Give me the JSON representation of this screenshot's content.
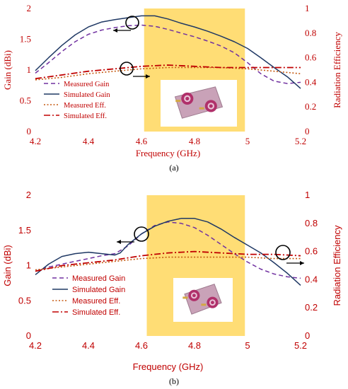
{
  "chart_data": [
    {
      "type": "line",
      "subfigure_label": "(a)",
      "xlabel": "Frequency (GHz)",
      "ylabel": "Gain (dBi)",
      "y2label": "Radiation Efficiency",
      "xlim": [
        4.2,
        5.2
      ],
      "ylim": [
        0,
        2
      ],
      "y2lim": [
        0,
        1
      ],
      "x_ticks": [
        "4.2",
        "4.4",
        "4.6",
        "4.8",
        "5",
        "5.2"
      ],
      "y_ticks": [
        "0",
        "0.5",
        "1",
        "1.5",
        "2"
      ],
      "y2_ticks": [
        "0",
        "0.2",
        "0.4",
        "0.6",
        "0.8",
        "1"
      ],
      "highlight_band": [
        4.61,
        4.99
      ],
      "legend": [
        "Measured Gain",
        "Simulated Gain",
        "Measured Eff.",
        "Simulated Eff."
      ],
      "series": [
        {
          "name": "Measured Gain",
          "axis": "left",
          "color": "#7030a0",
          "x": [
            4.2,
            4.25,
            4.3,
            4.35,
            4.4,
            4.45,
            4.5,
            4.55,
            4.6,
            4.65,
            4.7,
            4.75,
            4.8,
            4.85,
            4.9,
            4.95,
            5.0,
            5.05,
            5.1,
            5.15,
            5.2
          ],
          "y": [
            0.95,
            1.12,
            1.3,
            1.46,
            1.58,
            1.65,
            1.69,
            1.72,
            1.73,
            1.71,
            1.66,
            1.6,
            1.54,
            1.47,
            1.39,
            1.28,
            1.12,
            0.94,
            0.82,
            0.78,
            0.8
          ]
        },
        {
          "name": "Simulated Gain",
          "axis": "left",
          "color": "#1f3864",
          "x": [
            4.2,
            4.25,
            4.3,
            4.35,
            4.4,
            4.45,
            4.5,
            4.55,
            4.6,
            4.65,
            4.7,
            4.75,
            4.8,
            4.85,
            4.9,
            4.95,
            5.0,
            5.05,
            5.1,
            5.15,
            5.2
          ],
          "y": [
            0.99,
            1.2,
            1.4,
            1.57,
            1.7,
            1.78,
            1.82,
            1.85,
            1.88,
            1.88,
            1.83,
            1.76,
            1.7,
            1.63,
            1.55,
            1.46,
            1.35,
            1.2,
            1.04,
            0.89,
            0.7
          ]
        },
        {
          "name": "Measured Eff.",
          "axis": "right",
          "color": "#c55a11",
          "x": [
            4.2,
            4.3,
            4.4,
            4.5,
            4.6,
            4.7,
            4.8,
            4.9,
            5.0,
            5.1,
            5.2
          ],
          "y": [
            0.42,
            0.44,
            0.47,
            0.49,
            0.51,
            0.52,
            0.52,
            0.52,
            0.51,
            0.49,
            0.47
          ]
        },
        {
          "name": "Simulated Eff.",
          "axis": "right",
          "color": "#c00000",
          "x": [
            4.2,
            4.3,
            4.4,
            4.5,
            4.6,
            4.7,
            4.8,
            4.9,
            5.0,
            5.1,
            5.2
          ],
          "y": [
            0.43,
            0.46,
            0.49,
            0.51,
            0.53,
            0.54,
            0.53,
            0.52,
            0.52,
            0.52,
            0.52
          ]
        }
      ]
    },
    {
      "type": "line",
      "subfigure_label": "(b)",
      "xlabel": "Frequency (GHz)",
      "ylabel": "Gain (dBi)",
      "y2label": "Radiation Efficiency",
      "xlim": [
        4.2,
        5.2
      ],
      "ylim": [
        0,
        2
      ],
      "y2lim": [
        0,
        1
      ],
      "x_ticks": [
        "4.2",
        "4.4",
        "4.6",
        "4.8",
        "5",
        "5.2"
      ],
      "y_ticks": [
        "0",
        "0.5",
        "1",
        "1.5",
        "2"
      ],
      "y2_ticks": [
        "0",
        "0.2",
        "0.4",
        "0.6",
        "0.8",
        "1"
      ],
      "highlight_band": [
        4.62,
        4.99
      ],
      "legend": [
        "Measured Gain",
        "Simulated Gain",
        "Measured Eff.",
        "Simulated Eff."
      ],
      "series": [
        {
          "name": "Measured Gain",
          "axis": "left",
          "color": "#7030a0",
          "x": [
            4.2,
            4.25,
            4.3,
            4.35,
            4.4,
            4.45,
            4.5,
            4.55,
            4.6,
            4.65,
            4.7,
            4.75,
            4.8,
            4.85,
            4.9,
            4.95,
            5.0,
            5.05,
            5.1,
            5.15,
            5.2
          ],
          "y": [
            0.92,
            0.98,
            1.02,
            1.06,
            1.1,
            1.14,
            1.17,
            1.28,
            1.45,
            1.57,
            1.62,
            1.6,
            1.54,
            1.43,
            1.3,
            1.17,
            1.05,
            0.95,
            0.88,
            0.84,
            0.82
          ]
        },
        {
          "name": "Simulated Gain",
          "axis": "left",
          "color": "#1f3864",
          "x": [
            4.2,
            4.25,
            4.3,
            4.35,
            4.4,
            4.45,
            4.5,
            4.52,
            4.55,
            4.6,
            4.65,
            4.7,
            4.75,
            4.8,
            4.85,
            4.9,
            4.95,
            5.0,
            5.05,
            5.1,
            5.15,
            5.2
          ],
          "y": [
            0.87,
            1.02,
            1.13,
            1.17,
            1.19,
            1.17,
            1.15,
            1.18,
            1.3,
            1.45,
            1.56,
            1.63,
            1.67,
            1.67,
            1.62,
            1.52,
            1.4,
            1.29,
            1.18,
            1.04,
            0.89,
            0.72
          ]
        },
        {
          "name": "Measured Eff.",
          "axis": "right",
          "color": "#c55a11",
          "x": [
            4.2,
            4.3,
            4.4,
            4.5,
            4.6,
            4.7,
            4.8,
            4.9,
            5.0,
            5.1,
            5.2
          ],
          "y": [
            0.47,
            0.49,
            0.51,
            0.53,
            0.55,
            0.56,
            0.56,
            0.56,
            0.56,
            0.55,
            0.55
          ]
        },
        {
          "name": "Simulated Eff.",
          "axis": "right",
          "color": "#c00000",
          "x": [
            4.2,
            4.3,
            4.4,
            4.5,
            4.6,
            4.7,
            4.8,
            4.9,
            5.0,
            5.1,
            5.2
          ],
          "y": [
            0.46,
            0.5,
            0.52,
            0.54,
            0.57,
            0.59,
            0.6,
            0.59,
            0.58,
            0.58,
            0.57
          ]
        }
      ]
    }
  ]
}
